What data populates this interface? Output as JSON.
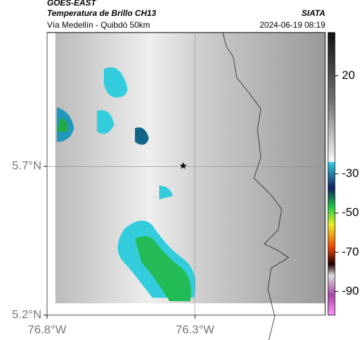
{
  "header": {
    "source": "GOES-EAST",
    "title": "Temperatura de Brillo CH13",
    "brand": "SIATA",
    "subtitle": "Vía Medellín - Quibdó 50km",
    "timestamp": "2024-06-19 08:19"
  },
  "map": {
    "xlim": [
      -76.8,
      -75.86
    ],
    "ylim": [
      5.2,
      6.15
    ],
    "xticks": [
      {
        "value": -76.8,
        "label": "76.8°W"
      },
      {
        "value": -76.3,
        "label": "76.3°W"
      }
    ],
    "yticks": [
      {
        "value": 5.2,
        "label": "5.2°N"
      },
      {
        "value": 5.7,
        "label": "5.7°N"
      }
    ],
    "grid": true,
    "marker": {
      "lon": -76.34,
      "lat": 5.7
    }
  },
  "colorbar": {
    "lim": [
      42,
      -102
    ],
    "ticks": [
      20,
      -30,
      -50,
      -70,
      -90
    ]
  }
}
